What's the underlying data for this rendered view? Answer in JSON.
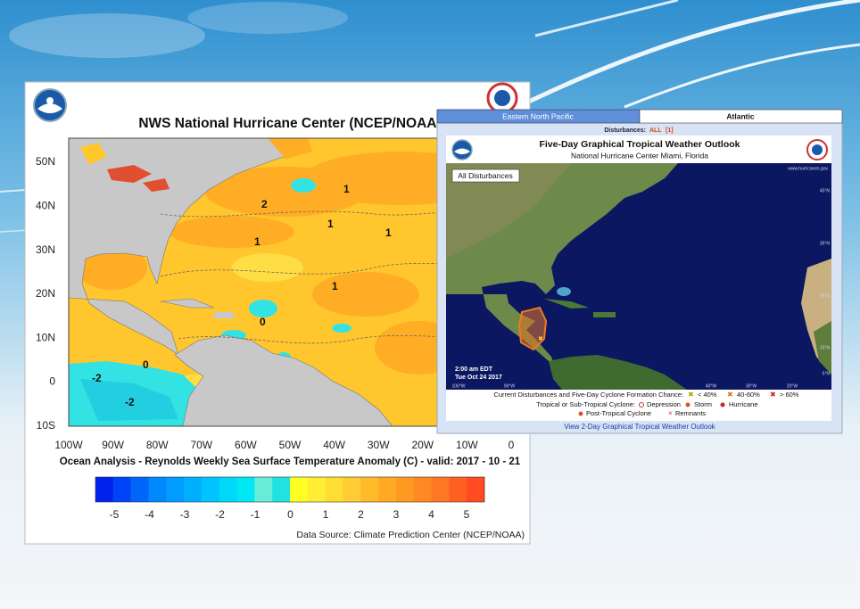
{
  "left_panel": {
    "title": "NWS National Hurricane Center (NCEP/NOAA)",
    "lat_labels": [
      "50N",
      "40N",
      "30N",
      "20N",
      "10N",
      "0",
      "10S"
    ],
    "lon_labels": [
      "100W",
      "90W",
      "80W",
      "70W",
      "60W",
      "50W",
      "40W",
      "30W",
      "20W",
      "10W",
      "0"
    ],
    "contour_labels": [
      "2",
      "1",
      "1",
      "1",
      "1",
      "0",
      "0",
      "-2",
      "-2",
      "1"
    ],
    "caption": "Ocean Analysis - Reynolds Weekly Sea Surface Temperature Anomaly (C) - valid: 2017 - 10 - 21",
    "colorbar": {
      "ticks": [
        -5,
        -4,
        -3,
        -2,
        -1,
        0,
        1,
        2,
        3,
        4,
        5
      ],
      "colors": [
        "#0022ee",
        "#0044f5",
        "#0066fa",
        "#0088ff",
        "#009cff",
        "#00b0ff",
        "#00c4ff",
        "#00d8fa",
        "#00e8f4",
        "#66ecd8",
        "#22e2e0",
        "#ffff22",
        "#ffee33",
        "#ffdd33",
        "#ffcc33",
        "#ffbb2a",
        "#ffaa22",
        "#ff9922",
        "#ff8822",
        "#ff7722",
        "#ff6022",
        "#ff4a22"
      ]
    },
    "source": "Data Source: Climate Prediction Center (NCEP/NOAA)"
  },
  "right_panel": {
    "tabs": [
      "Eastern North Pacific",
      "Atlantic"
    ],
    "disturbances_label": "Disturbances:",
    "disturbances_all": "ALL",
    "disturbances_count": "[1]",
    "title": "Five-Day Graphical Tropical Weather Outlook",
    "subtitle": "National Hurricane Center  Miami, Florida",
    "button": "All Disturbances",
    "website": "www.hurricanes.gov",
    "time": "2:00 am EDT",
    "date": "Tue Oct 24 2017",
    "lat_labels": [
      "45°N",
      "35°N",
      "25°N",
      "15°N",
      "5°N"
    ],
    "lon_labels": [
      "100°W",
      "90°W",
      "40°W",
      "30°W",
      "20°W"
    ],
    "legend": {
      "row1": "Current Disturbances and Five-Day Cyclone Formation Chance:",
      "chances": [
        "< 40%",
        "40-60%",
        "> 60%"
      ],
      "row2": "Tropical or Sub-Tropical Cyclone:",
      "cyclones": [
        "Depression",
        "Storm",
        "Hurricane"
      ],
      "row3": [
        "Post-Tropical Cyclone",
        "Remnants"
      ]
    },
    "link": "View 2-Day Graphical Tropical Weather Outlook"
  }
}
